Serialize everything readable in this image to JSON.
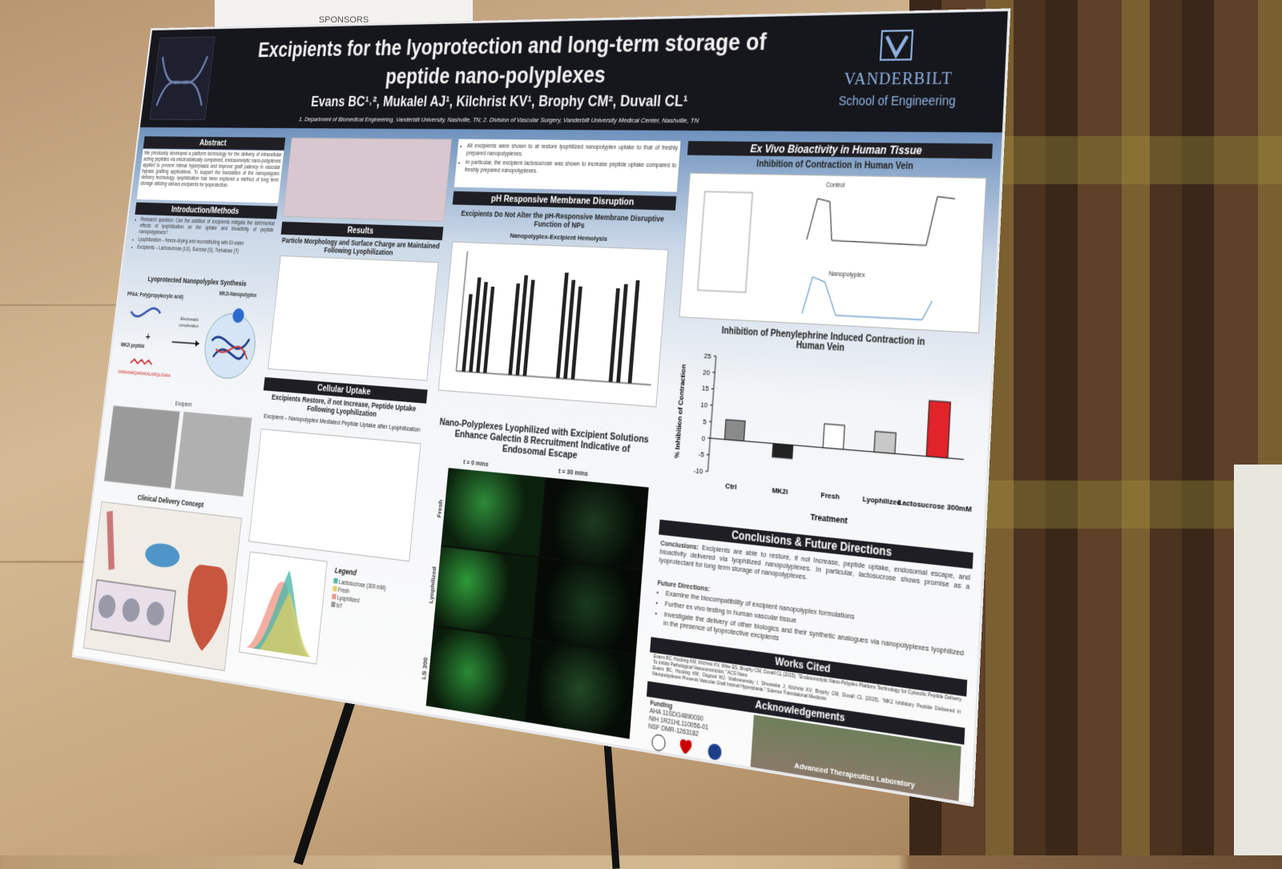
{
  "sign": "SPONSORS",
  "poster": {
    "header": {
      "title_lines": [
        "Excipients for the lyoprotection and long-term storage of",
        "peptide nano-polyplexes"
      ],
      "authors": "Evans BC¹˒², Mukalel AJ¹, Kilchrist KV¹, Brophy CM², Duvall CL¹",
      "affiliations": "1. Department of Biomedical Engineering, Vanderbilt University, Nashville, TN; 2. Division of Vascular Surgery, Vanderbilt University Medical Center, Nashville, TN",
      "institution": "VANDERBILT",
      "school": "School of Engineering"
    },
    "abstract": {
      "heading": "Abstract",
      "text": "We previously developed a platform technology for the delivery of intracellular acting peptides via electrostatically complexed, endosomolytic nano-polyplexes applied to prevent intimal hyperplasia and improve graft patency in vascular bypass grafting applications. To support the translation of the nanopolyplex delivery technology, lyophilization has been explored a method of long term storage utilizing various excipients for lyoprotection."
    },
    "intro": {
      "heading": "Introduction/Methods",
      "bullets": [
        "Research question: Can the addition of excipients mitigate the detrimental effects of lyophilization on the uptake and bioactivity of peptide nanopolyplexes?",
        "Lyophilization – freeze-drying and reconstituting with DI water",
        "Excipients – Lactosucrose (LS), Sucrose (S), Trehalose (T)"
      ],
      "synthesis_title": "Lyoprotected Nanopolyplex Synthesis",
      "ppaa": "PPAA: Poly(propylacrylic acid)",
      "nanopolyplex": "MK2i-Nanopolyplex",
      "complexation": "Electrostatic complexation",
      "peptide": "MK2i peptide",
      "sequence": "YARAAARQARAKALARQLGVAA",
      "excipient": "Excipient",
      "clinical": "Clinical Delivery Concept"
    },
    "results": {
      "heading": "Results",
      "morphology_title": "Particle Morphology and Surface Charge are Maintained Following Lyophilization",
      "uptake_heading": "Cellular Uptake",
      "uptake_title": "Excipients Restore, if not Increase, Peptide Uptake Following Lyophilization",
      "uptake_subtitle": "Excipient – Nanopolyplex Mediated Peptide Uptake after Lyophilization",
      "legend_title": "Legend",
      "legend": [
        "Lactosucrose (300 mM)",
        "Fresh",
        "Lyophilized",
        "NT"
      ]
    },
    "membrane": {
      "bullets": [
        "All excipients were shown to at restore lyophilized nanopolyplex uptake to that of freshly prepared nanopolyplexes.",
        "In particular, the excipient lactosucrose was shown to increase peptide uptake compared to freshly prepared nanopolyplexes."
      ],
      "heading": "pH Responsive Membrane Disruption",
      "title": "Excipients Do Not Alter the pH-Responsive Membrane Disruptive Function of NPs",
      "subtitle": "Nanopolyplex-Excipient Hemolysis",
      "galectin_title": "Nano-Polyplexes Lyophilized with Excipient Solutions Enhance Galectin 8 Recruitment Indicative of Endosomal Escape",
      "times": [
        "t = 0 mins",
        "t = 30 mins"
      ],
      "rows": [
        "Fresh",
        "Lyophilized",
        "LS 300"
      ]
    },
    "exvivo": {
      "heading": "Ex Vivo Bioactivity in Human Tissue",
      "title": "Inhibition of Contraction in Human Vein",
      "trace_labels": [
        "Control",
        "Nanopolyplex"
      ],
      "chart": {
        "type": "bar",
        "title": "Inhibition of Phenylephrine Induced Contraction in Human Vein",
        "categories": [
          "Ctrl",
          "MK2i",
          "Fresh",
          "Lyophilized",
          "Lactosucrose 300mM"
        ],
        "values": [
          6,
          -4,
          7,
          6,
          16
        ],
        "colors": [
          "#8a8a8a",
          "#222222",
          "#ffffff",
          "#c8c8c8",
          "#e0242a"
        ],
        "ylim": [
          -10,
          25
        ],
        "yticks": [
          -10,
          -5,
          0,
          5,
          10,
          15,
          20,
          25
        ],
        "y_label": "% Inhibition of Contraction",
        "x_label": "Treatment"
      }
    },
    "conclusions": {
      "heading": "Conclusions & Future Directions",
      "label": "Conclusions:",
      "text": "Excipients are able to restore, if not increase, peptide uptake, endosomal escape, and bioactivity delivered via lyophilized nanopolyplexes. In particular, lactosucrose shows promise as a lyoprotectant for long term storage of nanopolyplexes.",
      "future_label": "Future Directions:",
      "future": [
        "Examine the biocompatibility of excipient nanopolyplex formulations",
        "Further ex vivo testing in human vascular tissue",
        "Investigate the delivery of other biologics and their synthetic analogues via nanopolyplexes lyophilized in the presence of lyoprotective excipients"
      ]
    },
    "works_cited": {
      "heading": "Works Cited",
      "refs": [
        "Evans BC, Hocking KM, Kilchrist KV, Wise ES, Brophy CM, Duvall CL (2015). \"Endosomolytic Nano-Polyplex Platform Technology for Cytosolic Peptide Delivery To Inhibit Pathological Vasoconstriction.\" ACS Nano",
        "Evans BC, Hocking KM, Osgood MJ, Voskresensky I, Dmowska J, Kilchrist KV, Brophy CM, Duvall CL (2015). \"MK2 Inhibitory Peptide Delivered in Nanopolyplexes Prevents Vascular Graft Intimal Hyperplasia.\" Science Translational Medicine"
      ]
    },
    "acknowledgements": {
      "heading": "Acknowledgements",
      "funding_label": "Funding",
      "funding": [
        "AHA 11SDG4890030",
        "NIH 1R21HL110056-01",
        "NSF DMR-1263182"
      ],
      "photo_caption": "Advanced Therapeutics Laboratory"
    }
  }
}
